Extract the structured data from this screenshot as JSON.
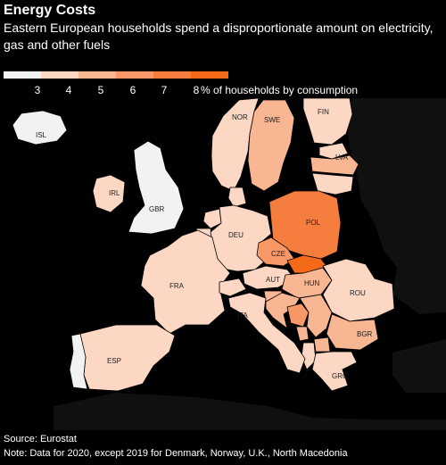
{
  "title": "Energy Costs",
  "subtitle": "Eastern European households spend a disproportionate amount on electricity, gas and other fuels",
  "legend": {
    "bins": [
      "#f2f2f2",
      "#fbd7c4",
      "#f9b693",
      "#f79866",
      "#f57e3f",
      "#f46a18"
    ],
    "ticks": [
      "3",
      "4",
      "5",
      "6",
      "7",
      "8"
    ],
    "unit": "% of households by consumption"
  },
  "map_colors": {
    "land_other": "#101010",
    "water": "#000000",
    "border": "#000000"
  },
  "countries": [
    {
      "code": "ISL",
      "label": "ISL",
      "fill": "#f2f2f2"
    },
    {
      "code": "NOR",
      "label": "NOR",
      "fill": "#fbd7c4"
    },
    {
      "code": "SWE",
      "label": "SWE",
      "fill": "#f9b693"
    },
    {
      "code": "FIN",
      "label": "FIN",
      "fill": "#fbd7c4"
    },
    {
      "code": "LVA",
      "label": "LVA",
      "fill": "#f9b693"
    },
    {
      "code": "IRL",
      "label": "IRL",
      "fill": "#fbd7c4"
    },
    {
      "code": "GBR",
      "label": "GBR",
      "fill": "#f2f2f2"
    },
    {
      "code": "DEU",
      "label": "DEU",
      "fill": "#fbd7c4"
    },
    {
      "code": "POL",
      "label": "POL",
      "fill": "#f57e3f"
    },
    {
      "code": "CZE",
      "label": "CZE",
      "fill": "#f79866"
    },
    {
      "code": "FRA",
      "label": "FRA",
      "fill": "#fbd7c4"
    },
    {
      "code": "AUT",
      "label": "AUT",
      "fill": "#fbd7c4"
    },
    {
      "code": "HUN",
      "label": "HUN",
      "fill": "#f9b693"
    },
    {
      "code": "SVK",
      "label": "",
      "fill": "#f46a18"
    },
    {
      "code": "ROU",
      "label": "ROU",
      "fill": "#fbd7c4"
    },
    {
      "code": "ITA",
      "label": "ITA",
      "fill": "#fbd7c4"
    },
    {
      "code": "BGR",
      "label": "BGR",
      "fill": "#f9b693"
    },
    {
      "code": "ESP",
      "label": "ESP",
      "fill": "#fbd7c4"
    },
    {
      "code": "PRT",
      "label": "",
      "fill": "#f2f2f2"
    },
    {
      "code": "GRC",
      "label": "GRC",
      "fill": "#fbd7c4"
    },
    {
      "code": "EST",
      "label": "",
      "fill": "#fbd7c4"
    },
    {
      "code": "LTU",
      "label": "",
      "fill": "#fbd7c4"
    },
    {
      "code": "DNK",
      "label": "",
      "fill": "#fbd7c4"
    },
    {
      "code": "NLD",
      "label": "",
      "fill": "#fbd7c4"
    },
    {
      "code": "BEL",
      "label": "",
      "fill": "#fbd7c4"
    },
    {
      "code": "CHE",
      "label": "",
      "fill": "#fbd7c4"
    },
    {
      "code": "SVN",
      "label": "",
      "fill": "#f9b693"
    },
    {
      "code": "HRV",
      "label": "",
      "fill": "#f9b693"
    },
    {
      "code": "SRB",
      "label": "",
      "fill": "#f9b693"
    },
    {
      "code": "BIH",
      "label": "",
      "fill": "#f79866"
    },
    {
      "code": "MNE",
      "label": "",
      "fill": "#f9b693"
    },
    {
      "code": "MKD",
      "label": "",
      "fill": "#f9b693"
    },
    {
      "code": "ALB",
      "label": "",
      "fill": "#fbd7c4"
    }
  ],
  "source": "Source: Eurostat",
  "note": "Note: Data for 2020, except 2019 for Denmark, Norway, U.K., North Macedonia"
}
